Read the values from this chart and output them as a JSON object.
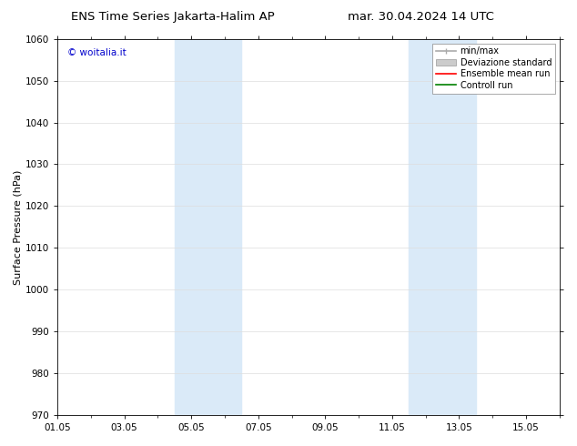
{
  "title_left": "ENS Time Series Jakarta-Halim AP",
  "title_right": "mar. 30.04.2024 14 UTC",
  "ylabel": "Surface Pressure (hPa)",
  "ylim": [
    970,
    1060
  ],
  "yticks": [
    970,
    980,
    990,
    1000,
    1010,
    1020,
    1030,
    1040,
    1050,
    1060
  ],
  "xlim": [
    0,
    15
  ],
  "xtick_labels": [
    "01.05",
    "03.05",
    "05.05",
    "07.05",
    "09.05",
    "11.05",
    "13.05",
    "15.05"
  ],
  "xtick_positions": [
    0,
    2,
    4,
    6,
    8,
    10,
    12,
    14
  ],
  "shaded_regions": [
    {
      "xmin": 3.5,
      "xmax": 5.5,
      "color": "#daeaf8"
    },
    {
      "xmin": 10.5,
      "xmax": 12.5,
      "color": "#daeaf8"
    }
  ],
  "watermark": "© woitalia.it",
  "watermark_color": "#0000cc",
  "legend_entries": [
    {
      "label": "min/max",
      "color": "#aaaaaa",
      "type": "errorbar"
    },
    {
      "label": "Deviazione standard",
      "color": "#cccccc",
      "type": "band"
    },
    {
      "label": "Ensemble mean run",
      "color": "#ff0000",
      "type": "line"
    },
    {
      "label": "Controll run",
      "color": "#008000",
      "type": "line"
    }
  ],
  "background_color": "#ffffff",
  "plot_bg_color": "#ffffff",
  "grid_color": "#dddddd",
  "title_fontsize": 9.5,
  "axis_label_fontsize": 8,
  "tick_fontsize": 7.5,
  "watermark_fontsize": 7.5,
  "legend_fontsize": 7
}
